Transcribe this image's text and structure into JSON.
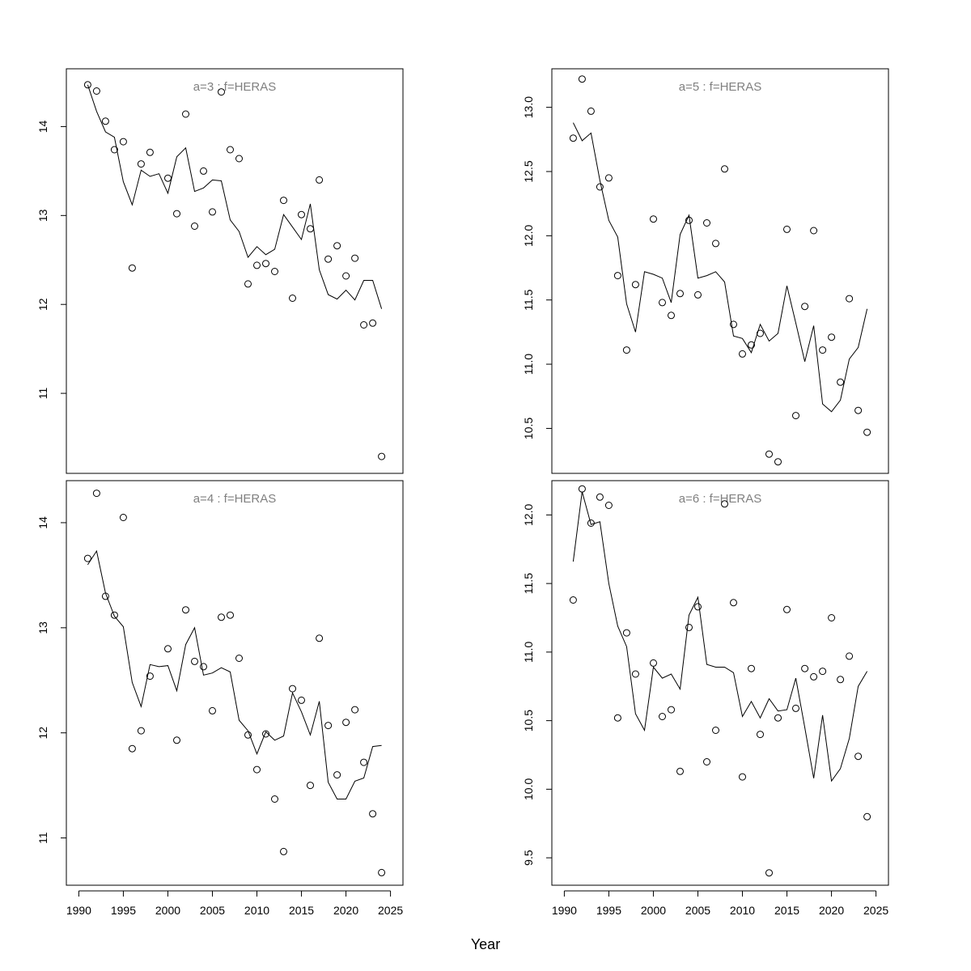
{
  "chart_data": {
    "type": "scatter",
    "xlabel": "Year",
    "colors": {
      "points": "#000000",
      "fit_line": "#000000",
      "panel_title": "#808080",
      "frame": "#000000"
    },
    "x_axis": {
      "range": [
        1988.6,
        2026.4
      ],
      "ticks": [
        1990,
        1995,
        2000,
        2005,
        2010,
        2015,
        2020,
        2025
      ],
      "tick_labels": [
        "1990",
        "1995",
        "2000",
        "2005",
        "2010",
        "2015",
        "2020",
        "2025"
      ]
    },
    "layout": "2x2 grid, shared x axis",
    "panels": [
      {
        "title": "a=3  :  f=HERAS",
        "position": "top-left",
        "ylim": [
          10.1,
          14.65
        ],
        "y_ticks": [
          11,
          12,
          13,
          14
        ],
        "y_tick_labels": [
          "11",
          "12",
          "13",
          "14"
        ],
        "series": [
          {
            "kind": "points",
            "x": [
              1991,
              1992,
              1993,
              1994,
              1995,
              1996,
              1997,
              1998,
              2000,
              2001,
              2002,
              2003,
              2004,
              2005,
              2006,
              2007,
              2008,
              2009,
              2010,
              2011,
              2012,
              2013,
              2014,
              2015,
              2016,
              2017,
              2018,
              2019,
              2020,
              2021,
              2022,
              2023,
              2024
            ],
            "y": [
              14.47,
              14.4,
              14.06,
              13.74,
              13.83,
              12.41,
              13.58,
              13.71,
              13.42,
              13.02,
              14.14,
              12.88,
              13.5,
              13.04,
              14.39,
              13.74,
              13.64,
              12.23,
              12.44,
              12.46,
              12.37,
              13.17,
              12.07,
              13.01,
              12.85,
              13.4,
              12.51,
              12.66,
              12.32,
              12.52,
              11.77,
              11.79,
              10.29
            ]
          },
          {
            "kind": "line",
            "x": [
              1991,
              1992,
              1993,
              1994,
              1995,
              1996,
              1997,
              1998,
              1999,
              2000,
              2001,
              2002,
              2003,
              2004,
              2005,
              2006,
              2007,
              2008,
              2009,
              2010,
              2011,
              2012,
              2013,
              2014,
              2015,
              2016,
              2017,
              2018,
              2019,
              2020,
              2021,
              2022,
              2023,
              2024
            ],
            "y": [
              14.47,
              14.17,
              13.94,
              13.88,
              13.38,
              13.12,
              13.51,
              13.44,
              13.47,
              13.25,
              13.66,
              13.76,
              13.27,
              13.31,
              13.4,
              13.39,
              12.95,
              12.82,
              12.53,
              12.65,
              12.56,
              12.62,
              13.01,
              12.87,
              12.73,
              13.13,
              12.39,
              12.11,
              12.06,
              12.16,
              12.05,
              12.27,
              12.27,
              11.95
            ]
          }
        ]
      },
      {
        "title": "a=5  :  f=HERAS",
        "position": "top-right",
        "ylim": [
          10.15,
          13.3
        ],
        "y_ticks": [
          10.5,
          11.0,
          11.5,
          12.0,
          12.5,
          13.0
        ],
        "y_tick_labels": [
          "10.5",
          "11.0",
          "11.5",
          "12.0",
          "12.5",
          "13.0"
        ],
        "series": [
          {
            "kind": "points",
            "x": [
              1991,
              1992,
              1993,
              1994,
              1995,
              1996,
              1997,
              1998,
              2000,
              2001,
              2002,
              2003,
              2004,
              2005,
              2006,
              2007,
              2008,
              2009,
              2010,
              2011,
              2012,
              2013,
              2014,
              2015,
              2016,
              2017,
              2018,
              2019,
              2020,
              2021,
              2022,
              2023,
              2024
            ],
            "y": [
              12.76,
              13.22,
              12.97,
              12.38,
              12.45,
              11.69,
              11.11,
              11.62,
              12.13,
              11.48,
              11.38,
              11.55,
              12.12,
              11.54,
              12.1,
              11.94,
              12.52,
              11.31,
              11.08,
              11.15,
              11.24,
              10.3,
              10.24,
              12.05,
              10.6,
              11.45,
              12.04,
              11.11,
              11.21,
              10.86,
              11.51,
              10.64,
              10.47
            ]
          },
          {
            "kind": "line",
            "x": [
              1991,
              1992,
              1993,
              1994,
              1995,
              1996,
              1997,
              1998,
              1999,
              2000,
              2001,
              2002,
              2003,
              2004,
              2005,
              2006,
              2007,
              2008,
              2009,
              2010,
              2011,
              2012,
              2013,
              2014,
              2015,
              2016,
              2017,
              2018,
              2019,
              2020,
              2021,
              2022,
              2023,
              2024
            ],
            "y": [
              12.88,
              12.74,
              12.8,
              12.43,
              12.12,
              11.99,
              11.47,
              11.25,
              11.72,
              11.7,
              11.67,
              11.48,
              12.01,
              12.16,
              11.67,
              11.69,
              11.72,
              11.64,
              11.22,
              11.2,
              11.09,
              11.31,
              11.18,
              11.24,
              11.61,
              11.32,
              11.02,
              11.3,
              10.69,
              10.63,
              10.72,
              11.04,
              11.13,
              11.43
            ]
          }
        ]
      },
      {
        "title": "a=4  :  f=HERAS",
        "position": "bottom-left",
        "ylim": [
          10.55,
          14.4
        ],
        "y_ticks": [
          11,
          12,
          13,
          14
        ],
        "y_tick_labels": [
          "11",
          "12",
          "13",
          "14"
        ],
        "series": [
          {
            "kind": "points",
            "x": [
              1991,
              1992,
              1993,
              1994,
              1995,
              1996,
              1997,
              1998,
              2000,
              2001,
              2002,
              2003,
              2004,
              2005,
              2006,
              2007,
              2008,
              2009,
              2010,
              2011,
              2012,
              2013,
              2014,
              2015,
              2016,
              2017,
              2018,
              2019,
              2020,
              2021,
              2022,
              2023,
              2024
            ],
            "y": [
              13.66,
              14.28,
              13.3,
              13.12,
              14.05,
              11.85,
              12.02,
              12.54,
              12.8,
              11.93,
              13.17,
              12.68,
              12.63,
              12.21,
              13.1,
              13.12,
              12.71,
              11.98,
              11.65,
              11.99,
              11.37,
              10.87,
              12.42,
              12.31,
              11.5,
              12.9,
              12.07,
              11.6,
              12.1,
              12.22,
              11.72,
              11.23,
              10.67
            ]
          },
          {
            "kind": "line",
            "x": [
              1991,
              1992,
              1993,
              1994,
              1995,
              1996,
              1997,
              1998,
              1999,
              2000,
              2001,
              2002,
              2003,
              2004,
              2005,
              2006,
              2007,
              2008,
              2009,
              2010,
              2011,
              2012,
              2013,
              2014,
              2015,
              2016,
              2017,
              2018,
              2019,
              2020,
              2021,
              2022,
              2023,
              2024
            ],
            "y": [
              13.6,
              13.73,
              13.33,
              13.11,
              13.01,
              12.48,
              12.25,
              12.65,
              12.63,
              12.64,
              12.4,
              12.84,
              13.0,
              12.55,
              12.57,
              12.62,
              12.58,
              12.12,
              12.02,
              11.8,
              12.01,
              11.93,
              11.97,
              12.38,
              12.2,
              11.98,
              12.3,
              11.53,
              11.37,
              11.37,
              11.54,
              11.57,
              11.87,
              11.88
            ]
          }
        ]
      },
      {
        "title": "a=6  :  f=HERAS",
        "position": "bottom-right",
        "ylim": [
          9.3,
          12.25
        ],
        "y_ticks": [
          9.5,
          10.0,
          10.5,
          11.0,
          11.5,
          12.0
        ],
        "y_tick_labels": [
          "9.5",
          "10.0",
          "10.5",
          "11.0",
          "11.5",
          "12.0"
        ],
        "series": [
          {
            "kind": "points",
            "x": [
              1991,
              1992,
              1993,
              1994,
              1995,
              1996,
              1997,
              1998,
              2000,
              2001,
              2002,
              2003,
              2004,
              2005,
              2006,
              2007,
              2008,
              2009,
              2010,
              2011,
              2012,
              2013,
              2014,
              2015,
              2016,
              2017,
              2018,
              2019,
              2020,
              2021,
              2022,
              2023,
              2024
            ],
            "y": [
              11.38,
              12.19,
              11.94,
              12.13,
              12.07,
              10.52,
              11.14,
              10.84,
              10.92,
              10.53,
              10.58,
              10.13,
              11.18,
              11.33,
              10.2,
              10.43,
              12.08,
              11.36,
              10.09,
              10.88,
              10.4,
              9.39,
              10.52,
              11.31,
              10.59,
              10.88,
              10.82,
              10.86,
              11.25,
              10.8,
              10.97,
              10.24,
              9.8
            ]
          },
          {
            "kind": "line",
            "x": [
              1991,
              1992,
              1993,
              1994,
              1995,
              1996,
              1997,
              1998,
              1999,
              2000,
              2001,
              2002,
              2003,
              2004,
              2005,
              2006,
              2007,
              2008,
              2009,
              2010,
              2011,
              2012,
              2013,
              2014,
              2015,
              2016,
              2017,
              2018,
              2019,
              2020,
              2021,
              2022,
              2023,
              2024
            ],
            "y": [
              11.66,
              12.17,
              11.93,
              11.95,
              11.5,
              11.19,
              11.04,
              10.55,
              10.43,
              10.89,
              10.81,
              10.84,
              10.73,
              11.27,
              11.4,
              10.91,
              10.89,
              10.89,
              10.85,
              10.53,
              10.64,
              10.52,
              10.66,
              10.57,
              10.58,
              10.81,
              10.45,
              10.08,
              10.54,
              10.06,
              10.15,
              10.37,
              10.75,
              10.86
            ]
          }
        ]
      }
    ]
  }
}
